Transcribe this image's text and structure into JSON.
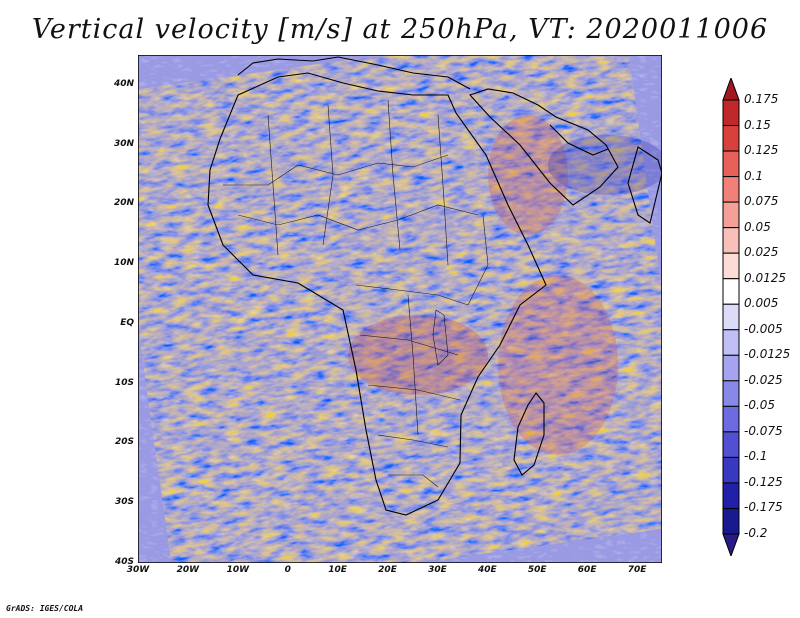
{
  "title": "Vertical velocity [m/s] at 250hPa, VT: 2020011006",
  "map": {
    "region": "Africa",
    "variable": "vertical velocity",
    "units": "m/s",
    "pressure_level": "250hPa",
    "valid_time": "2020011006",
    "lon_range": [
      -30,
      75
    ],
    "lat_range": [
      -40,
      45
    ],
    "lat_labels": [
      "40N",
      "30N",
      "20N",
      "10N",
      "EQ",
      "10S",
      "20S",
      "30S",
      "40S"
    ],
    "lat_values": [
      40,
      30,
      20,
      10,
      0,
      -10,
      -20,
      -30,
      -40
    ],
    "lon_labels": [
      "30W",
      "20W",
      "10W",
      "0",
      "10E",
      "20E",
      "30E",
      "40E",
      "50E",
      "60E",
      "70E"
    ],
    "lon_values": [
      -30,
      -20,
      -10,
      0,
      10,
      20,
      30,
      40,
      50,
      60,
      70
    ]
  },
  "colorbar": {
    "labels": [
      "0.175",
      "0.15",
      "0.125",
      "0.1",
      "0.075",
      "0.05",
      "0.025",
      "0.0125",
      "0.005",
      "-0.005",
      "-0.0125",
      "-0.025",
      "-0.05",
      "-0.075",
      "-0.1",
      "-0.125",
      "-0.175",
      "-0.2"
    ],
    "colors": [
      "#a01820",
      "#c0282c",
      "#d8403c",
      "#e8605a",
      "#f08078",
      "#f4a098",
      "#f8c0b8",
      "#fcdcd6",
      "#ffffff",
      "#dcdcf8",
      "#c0c0f4",
      "#a4a4f0",
      "#8888e8",
      "#6c6ce0",
      "#5050d0",
      "#3838c0",
      "#2020a8",
      "#1a1a90",
      "#2a1a88"
    ]
  },
  "credit": "GrADS: IGES/COLA"
}
